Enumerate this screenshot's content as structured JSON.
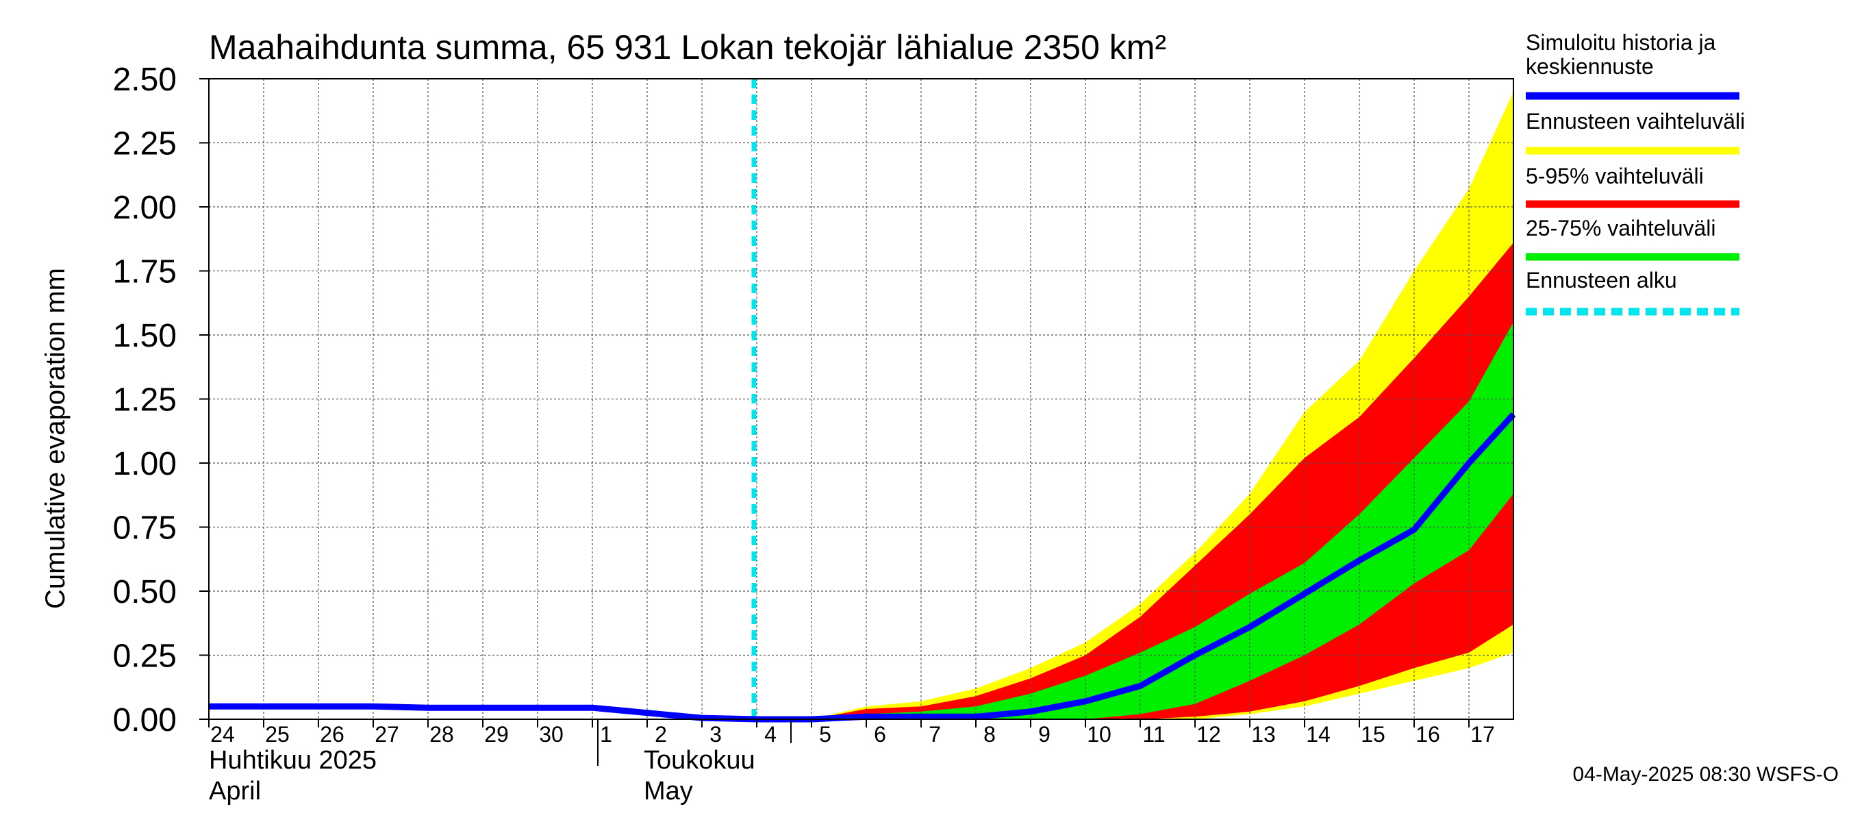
{
  "chart_data": {
    "type": "area",
    "title": "Maahaihdunta summa, 65 931 Lokan tekojär lähialue 2350 km²",
    "ylabel": "Cumulative evaporation   mm",
    "xlabel": "",
    "ylim": [
      0,
      2.5
    ],
    "y_ticks": [
      "0.00",
      "0.25",
      "0.50",
      "0.75",
      "1.00",
      "1.25",
      "1.50",
      "1.75",
      "2.00",
      "2.25",
      "2.50"
    ],
    "x_ticks": [
      "24",
      "25",
      "26",
      "27",
      "28",
      "29",
      "30",
      "1",
      "2",
      "3",
      "4",
      "5",
      "6",
      "7",
      "8",
      "9",
      "10",
      "11",
      "12",
      "13",
      "14",
      "15",
      "16",
      "17"
    ],
    "x_range": [
      "2025-04-24",
      "2025-05-17"
    ],
    "month_labels": [
      {
        "line1": "Huhtikuu  2025",
        "line2": "April"
      },
      {
        "line1": "Toukokuu",
        "line2": "May"
      }
    ],
    "forecast_start": "2025-05-04",
    "grid": true,
    "legend_placement": "right",
    "legend": [
      {
        "label": "Simuloitu historia ja keskiennuste",
        "color": "#0000ff",
        "style": "solid"
      },
      {
        "label": "Ennusteen vaihteluväli",
        "color": "#ffff00",
        "style": "solid"
      },
      {
        "label": "5-95% vaihteluväli",
        "color": "#ff0000",
        "style": "solid"
      },
      {
        "label": "25-75% vaihteluväli",
        "color": "#00ee00",
        "style": "solid"
      },
      {
        "label": "Ennusteen alku",
        "color": "#00e5ee",
        "style": "dashed"
      }
    ],
    "bands_x": [
      "2025-05-05",
      "2025-05-06",
      "2025-05-07",
      "2025-05-08",
      "2025-05-09",
      "2025-05-10",
      "2025-05-11",
      "2025-05-12",
      "2025-05-13",
      "2025-05-14",
      "2025-05-15",
      "2025-05-16",
      "2025-05-17",
      "2025-05-18"
    ],
    "bands": {
      "full_range": {
        "upper": [
          0,
          0.05,
          0.07,
          0.12,
          0.2,
          0.3,
          0.45,
          0.65,
          0.88,
          1.2,
          1.4,
          1.75,
          2.07,
          2.45
        ],
        "lower": [
          0,
          0,
          0,
          0,
          0,
          0,
          0,
          0,
          0.02,
          0.05,
          0.1,
          0.15,
          0.2,
          0.26
        ]
      },
      "p5_p95": {
        "upper": [
          0,
          0.04,
          0.05,
          0.09,
          0.16,
          0.25,
          0.4,
          0.6,
          0.8,
          1.02,
          1.18,
          1.41,
          1.65,
          1.86
        ],
        "lower": [
          0,
          0,
          0,
          0,
          0,
          0,
          0,
          0.01,
          0.03,
          0.07,
          0.13,
          0.2,
          0.26,
          0.37
        ]
      },
      "p25_p75": {
        "upper": [
          0,
          0.02,
          0.03,
          0.05,
          0.1,
          0.17,
          0.26,
          0.36,
          0.49,
          0.61,
          0.8,
          1.02,
          1.24,
          1.55
        ],
        "lower": [
          0,
          0,
          0,
          0,
          0,
          0,
          0.02,
          0.06,
          0.15,
          0.25,
          0.37,
          0.53,
          0.66,
          0.88
        ]
      }
    },
    "series": [
      {
        "name": "Simuloitu historia ja keskiennuste",
        "color": "#0000ff",
        "x": [
          "2025-04-24",
          "2025-04-25",
          "2025-04-26",
          "2025-04-27",
          "2025-04-28",
          "2025-04-29",
          "2025-04-30",
          "2025-05-01",
          "2025-05-02",
          "2025-05-03",
          "2025-05-04",
          "2025-05-05",
          "2025-05-06",
          "2025-05-07",
          "2025-05-08",
          "2025-05-09",
          "2025-05-10",
          "2025-05-11",
          "2025-05-12",
          "2025-05-13",
          "2025-05-14",
          "2025-05-15",
          "2025-05-16",
          "2025-05-17",
          "2025-05-18"
        ],
        "values": [
          0.05,
          0.05,
          0.05,
          0.05,
          0.045,
          0.045,
          0.045,
          0.045,
          0.025,
          0.005,
          0,
          0,
          0.01,
          0.01,
          0.01,
          0.03,
          0.07,
          0.13,
          0.25,
          0.36,
          0.49,
          0.62,
          0.74,
          1.0,
          1.19
        ]
      }
    ]
  },
  "footer": "04-May-2025 08:30 WSFS-O"
}
